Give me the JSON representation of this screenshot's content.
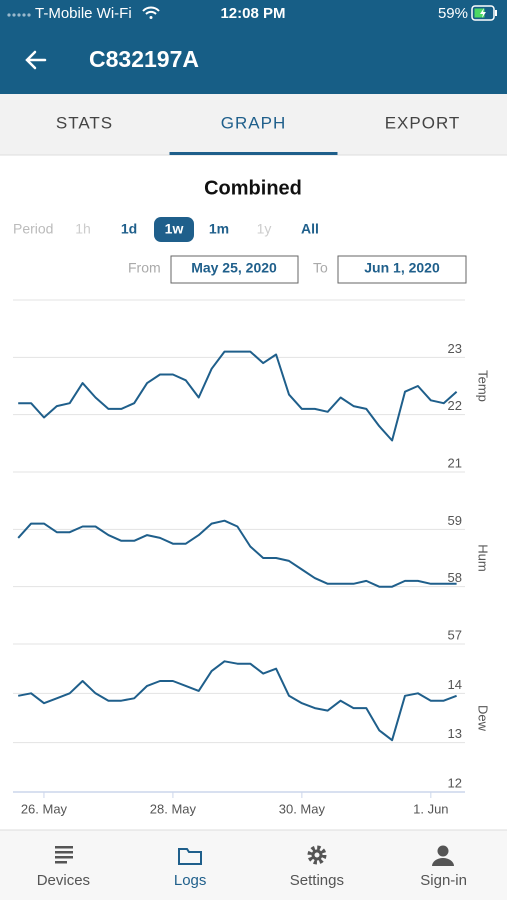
{
  "status_bar": {
    "carrier": "T-Mobile Wi-Fi",
    "time": "12:08 PM",
    "battery": "59%"
  },
  "header": {
    "title": "C832197A"
  },
  "tabs": [
    {
      "label": "STATS",
      "active": false
    },
    {
      "label": "GRAPH",
      "active": true
    },
    {
      "label": "EXPORT",
      "active": false
    }
  ],
  "graph": {
    "title": "Combined",
    "period_label": "Period",
    "periods": [
      {
        "label": "1h",
        "state": "disabled"
      },
      {
        "label": "1d",
        "state": "enabled"
      },
      {
        "label": "1w",
        "state": "selected"
      },
      {
        "label": "1m",
        "state": "enabled"
      },
      {
        "label": "1y",
        "state": "disabled"
      },
      {
        "label": "All",
        "state": "enabled"
      }
    ],
    "from_label": "From",
    "from": "May 25, 2020",
    "to_label": "To",
    "to": "Jun 1, 2020"
  },
  "chart_data": [
    {
      "type": "line",
      "ylabel": "Temp",
      "color": "#1f5f8b",
      "grid": true,
      "ylim": [
        21,
        24
      ],
      "yticks": [
        21,
        22,
        23
      ],
      "xlim": [
        25.52,
        32.53
      ],
      "x": [
        25.6,
        25.8,
        26.0,
        26.2,
        26.4,
        26.6,
        26.8,
        27.0,
        27.2,
        27.4,
        27.6,
        27.8,
        28.0,
        28.2,
        28.4,
        28.6,
        28.8,
        29.0,
        29.2,
        29.4,
        29.6,
        29.8,
        30.0,
        30.2,
        30.4,
        30.6,
        30.8,
        31.0,
        31.2,
        31.4,
        31.6,
        31.8,
        32.0,
        32.2,
        32.4
      ],
      "values": [
        22.2,
        22.2,
        21.95,
        22.15,
        22.2,
        22.55,
        22.3,
        22.1,
        22.1,
        22.2,
        22.55,
        22.7,
        22.7,
        22.6,
        22.3,
        22.8,
        23.1,
        23.1,
        23.1,
        22.9,
        23.05,
        22.35,
        22.1,
        22.1,
        22.05,
        22.3,
        22.15,
        22.1,
        21.8,
        21.55,
        22.4,
        22.5,
        22.25,
        22.2,
        22.4
      ]
    },
    {
      "type": "line",
      "ylabel": "Hum",
      "color": "#1f5f8b",
      "grid": true,
      "ylim": [
        57,
        60
      ],
      "yticks": [
        57,
        58,
        59
      ],
      "xlim": [
        25.52,
        32.53
      ],
      "x": [
        25.6,
        25.8,
        26.0,
        26.2,
        26.4,
        26.6,
        26.8,
        27.0,
        27.2,
        27.4,
        27.6,
        27.8,
        28.0,
        28.2,
        28.4,
        28.6,
        28.8,
        29.0,
        29.2,
        29.4,
        29.6,
        29.8,
        30.0,
        30.2,
        30.4,
        30.6,
        30.8,
        31.0,
        31.2,
        31.4,
        31.6,
        31.8,
        32.0,
        32.2,
        32.4
      ],
      "values": [
        58.85,
        59.1,
        59.1,
        58.95,
        58.95,
        59.05,
        59.05,
        58.9,
        58.8,
        58.8,
        58.9,
        58.85,
        58.75,
        58.75,
        58.9,
        59.1,
        59.15,
        59.05,
        58.7,
        58.5,
        58.5,
        58.45,
        58.3,
        58.15,
        58.05,
        58.05,
        58.05,
        58.1,
        58.0,
        58.0,
        58.1,
        58.1,
        58.05,
        58.05,
        58.05
      ]
    },
    {
      "type": "line",
      "ylabel": "Dew",
      "color": "#1f5f8b",
      "grid": true,
      "ylim": [
        12,
        15
      ],
      "yticks": [
        12,
        13,
        14
      ],
      "xlim": [
        25.52,
        32.53
      ],
      "xticks": [
        {
          "value": 26,
          "label": "26. May"
        },
        {
          "value": 28,
          "label": "28. May"
        },
        {
          "value": 30,
          "label": "30. May"
        },
        {
          "value": 32,
          "label": "1. Jun"
        }
      ],
      "x": [
        25.6,
        25.8,
        26.0,
        26.2,
        26.4,
        26.6,
        26.8,
        27.0,
        27.2,
        27.4,
        27.6,
        27.8,
        28.0,
        28.2,
        28.4,
        28.6,
        28.8,
        29.0,
        29.2,
        29.4,
        29.6,
        29.8,
        30.0,
        30.2,
        30.4,
        30.6,
        30.8,
        31.0,
        31.2,
        31.4,
        31.6,
        31.8,
        32.0,
        32.2,
        32.4
      ],
      "values": [
        13.95,
        14.0,
        13.8,
        13.9,
        14.0,
        14.25,
        14.0,
        13.85,
        13.85,
        13.9,
        14.15,
        14.25,
        14.25,
        14.15,
        14.05,
        14.45,
        14.65,
        14.6,
        14.6,
        14.4,
        14.5,
        13.95,
        13.8,
        13.7,
        13.65,
        13.85,
        13.7,
        13.7,
        13.25,
        13.05,
        13.95,
        14.0,
        13.85,
        13.85,
        13.95
      ]
    }
  ],
  "nav": [
    {
      "label": "Devices",
      "active": false
    },
    {
      "label": "Logs",
      "active": true
    },
    {
      "label": "Settings",
      "active": false
    },
    {
      "label": "Sign-in",
      "active": false
    }
  ]
}
